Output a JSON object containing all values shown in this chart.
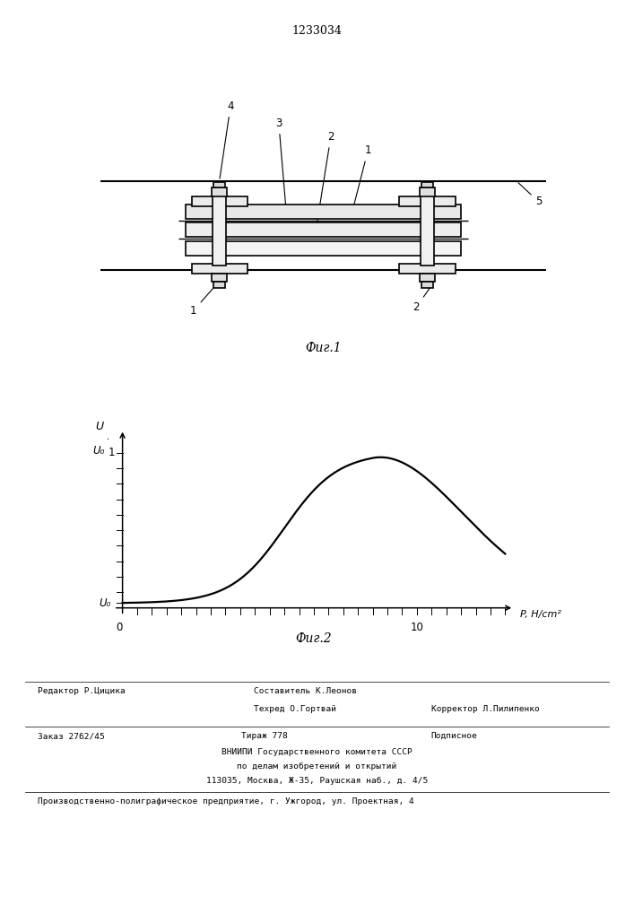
{
  "patent_number": "1233034",
  "fig1_label": "Фиг.1",
  "fig2_label": "Фиг.2",
  "ylabel_top": "U",
  "ylabel_bot": "U₀",
  "xlabel": "P, H/cm²",
  "y_tick_label_1": "1",
  "y_left_label": "U₀",
  "x_tick_label_10": "10",
  "x_origin": "0",
  "footer_line1_left": "Редактор Р.Цицика",
  "footer_line1_center": "Составитель К.Леонов",
  "footer_line2_center": "Техред О.Гортвай",
  "footer_line2_right": "Корректор Л.Пилипенко",
  "footer_order": "Заказ 2762/45",
  "footer_tirazh": "Тираж 778",
  "footer_podp": "Подписное",
  "footer_vniip1": "ВНИИПИ Государственного комитета СССР",
  "footer_vniip2": "по делам изобретений и открытий",
  "footer_addr": "113035, Москва, Ж-35, Раушская наб., д. 4/5",
  "footer_bottom": "Производственно-полиграфическое предприятие, г. Ужгород, ул. Проектная, 4",
  "bg_color": "#ffffff",
  "line_color": "#000000"
}
